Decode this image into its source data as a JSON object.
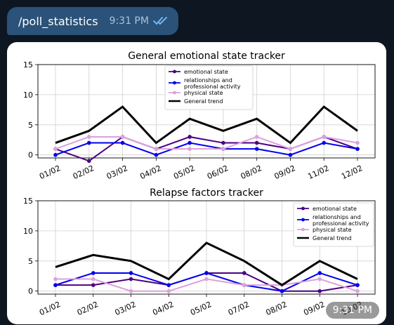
{
  "message": {
    "command": "/poll_statistics",
    "time": "9:31 PM",
    "status_icon": "double-check-icon"
  },
  "photo": {
    "time": "9:31 PM"
  },
  "chart_data": [
    {
      "type": "line",
      "title": "General emotional state tracker",
      "categories": [
        "01/02",
        "02/02",
        "03/02",
        "04/02",
        "05/02",
        "06/02",
        "08/02",
        "09/02",
        "11/02",
        "12/02"
      ],
      "ylim": [
        -0.5,
        15
      ],
      "yticks": [
        0,
        5,
        10,
        15
      ],
      "grid": true,
      "legend_placement": "top-center",
      "series": [
        {
          "name": "emotional state",
          "color": "#4b0082",
          "marker": true,
          "values": [
            1,
            -1,
            3,
            1,
            3,
            2,
            2,
            1,
            3,
            1
          ]
        },
        {
          "name": "relationships and professional activity",
          "color": "#0000ee",
          "marker": true,
          "values": [
            0,
            2,
            2,
            0,
            2,
            1,
            1,
            0,
            2,
            1
          ]
        },
        {
          "name": "physical state",
          "color": "#dda0dd",
          "marker": true,
          "values": [
            1,
            3,
            3,
            1,
            1,
            1,
            3,
            1,
            3,
            2
          ]
        },
        {
          "name": "General trend",
          "color": "#000000",
          "marker": false,
          "values": [
            2,
            4,
            8,
            2,
            6,
            4,
            6,
            2,
            8,
            4
          ]
        }
      ]
    },
    {
      "type": "line",
      "title": "Relapse factors tracker",
      "categories": [
        "01/02",
        "02/02",
        "03/02",
        "04/02",
        "05/02",
        "07/02",
        "08/02",
        "09/02",
        "10/02"
      ],
      "ylim": [
        -0.5,
        15
      ],
      "yticks": [
        0,
        5,
        10,
        15
      ],
      "grid": true,
      "legend_placement": "top-right",
      "series": [
        {
          "name": "emotional state",
          "color": "#4b0082",
          "marker": true,
          "values": [
            1,
            1,
            2,
            1,
            3,
            3,
            0,
            0,
            1
          ]
        },
        {
          "name": "relationships and professional activity",
          "color": "#0000ee",
          "marker": true,
          "values": [
            1,
            3,
            3,
            1,
            3,
            1,
            0,
            3,
            1
          ]
        },
        {
          "name": "physical state",
          "color": "#dda0dd",
          "marker": true,
          "values": [
            2,
            2,
            0,
            0,
            2,
            1,
            1,
            2,
            0
          ]
        },
        {
          "name": "General trend",
          "color": "#000000",
          "marker": false,
          "values": [
            4,
            6,
            5,
            2,
            8,
            5,
            1,
            5,
            2
          ]
        }
      ]
    }
  ]
}
